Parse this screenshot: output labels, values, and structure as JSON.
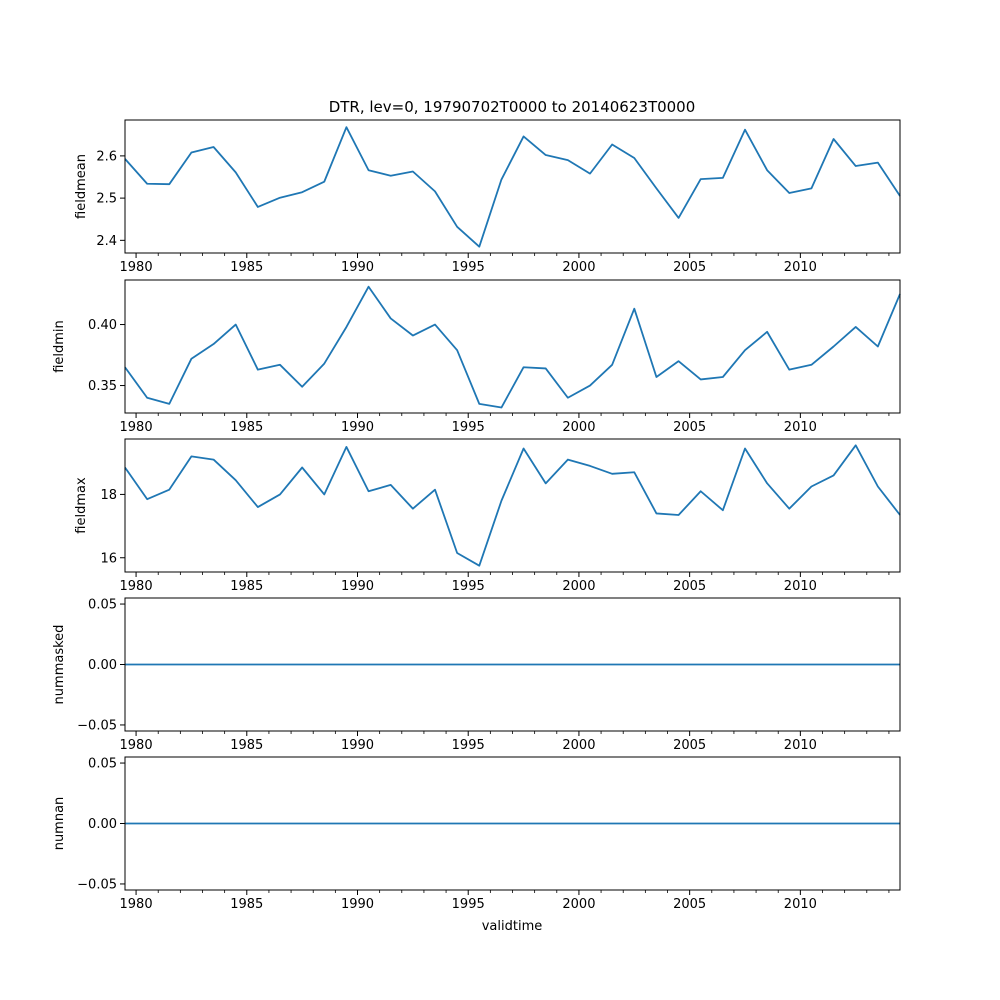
{
  "figure": {
    "title": "DTR, lev=0, 19790702T0000 to 20140623T0000",
    "xlabel": "validtime",
    "line_color": "#1f77b4"
  },
  "chart_data": [
    {
      "type": "line",
      "ylabel": "fieldmean",
      "xlim": [
        1979.5,
        2014.5
      ],
      "ylim": [
        2.37,
        2.685
      ],
      "x_ticks": [
        "1980",
        "1985",
        "1990",
        "1995",
        "2000",
        "2005",
        "2010"
      ],
      "y_ticks": [
        "2.4",
        "2.5",
        "2.6"
      ],
      "y_tick_values": [
        2.4,
        2.5,
        2.6
      ],
      "x": [
        1979.5,
        1980.5,
        1981.5,
        1982.5,
        1983.5,
        1984.5,
        1985.5,
        1986.5,
        1987.5,
        1988.5,
        1989.5,
        1990.5,
        1991.5,
        1992.5,
        1993.5,
        1994.5,
        1995.5,
        1996.5,
        1997.5,
        1998.5,
        1999.5,
        2000.5,
        2001.5,
        2002.5,
        2003.5,
        2004.5,
        2005.5,
        2006.5,
        2007.5,
        2008.5,
        2009.5,
        2010.5,
        2011.5,
        2012.5,
        2013.5,
        2014.5
      ],
      "values": [
        2.593,
        2.534,
        2.533,
        2.608,
        2.621,
        2.561,
        2.479,
        2.501,
        2.514,
        2.539,
        2.668,
        2.566,
        2.553,
        2.563,
        2.516,
        2.432,
        2.385,
        2.544,
        2.646,
        2.602,
        2.59,
        2.558,
        2.627,
        2.595,
        2.523,
        2.453,
        2.545,
        2.548,
        2.662,
        2.566,
        2.512,
        2.523,
        2.64,
        2.576,
        2.584,
        2.505
      ]
    },
    {
      "type": "line",
      "ylabel": "fieldmin",
      "xlim": [
        1979.5,
        2014.5
      ],
      "ylim": [
        0.3275,
        0.4365
      ],
      "x_ticks": [
        "1980",
        "1985",
        "1990",
        "1995",
        "2000",
        "2005",
        "2010"
      ],
      "y_ticks": [
        "0.35",
        "0.40"
      ],
      "y_tick_values": [
        0.35,
        0.4
      ],
      "x": [
        1979.5,
        1980.5,
        1981.5,
        1982.5,
        1983.5,
        1984.5,
        1985.5,
        1986.5,
        1987.5,
        1988.5,
        1989.5,
        1990.5,
        1991.5,
        1992.5,
        1993.5,
        1994.5,
        1995.5,
        1996.5,
        1997.5,
        1998.5,
        1999.5,
        2000.5,
        2001.5,
        2002.5,
        2003.5,
        2004.5,
        2005.5,
        2006.5,
        2007.5,
        2008.5,
        2009.5,
        2010.5,
        2011.5,
        2012.5,
        2013.5,
        2014.5
      ],
      "values": [
        0.365,
        0.34,
        0.335,
        0.372,
        0.384,
        0.4,
        0.363,
        0.367,
        0.349,
        0.368,
        0.398,
        0.431,
        0.405,
        0.391,
        0.4,
        0.379,
        0.335,
        0.332,
        0.365,
        0.364,
        0.34,
        0.35,
        0.367,
        0.413,
        0.357,
        0.37,
        0.355,
        0.357,
        0.379,
        0.394,
        0.363,
        0.367,
        0.382,
        0.398,
        0.382,
        0.425
      ]
    },
    {
      "type": "line",
      "ylabel": "fieldmax",
      "xlim": [
        1979.5,
        2014.5
      ],
      "ylim": [
        15.55,
        19.75
      ],
      "x_ticks": [
        "1980",
        "1985",
        "1990",
        "1995",
        "2000",
        "2005",
        "2010"
      ],
      "y_ticks": [
        "16",
        "18"
      ],
      "y_tick_values": [
        16,
        18
      ],
      "x": [
        1979.5,
        1980.5,
        1981.5,
        1982.5,
        1983.5,
        1984.5,
        1985.5,
        1986.5,
        1987.5,
        1988.5,
        1989.5,
        1990.5,
        1991.5,
        1992.5,
        1993.5,
        1994.5,
        1995.5,
        1996.5,
        1997.5,
        1998.5,
        1999.5,
        2000.5,
        2001.5,
        2002.5,
        2003.5,
        2004.5,
        2005.5,
        2006.5,
        2007.5,
        2008.5,
        2009.5,
        2010.5,
        2011.5,
        2012.5,
        2013.5,
        2014.5
      ],
      "values": [
        18.85,
        17.85,
        18.15,
        19.2,
        19.1,
        18.45,
        17.6,
        18.0,
        18.85,
        18.0,
        19.5,
        18.1,
        18.3,
        17.55,
        18.15,
        16.15,
        15.75,
        17.8,
        19.45,
        18.35,
        19.1,
        18.9,
        18.65,
        18.7,
        17.4,
        17.35,
        18.1,
        17.5,
        19.45,
        18.35,
        17.55,
        18.25,
        18.6,
        19.55,
        18.25,
        17.35
      ]
    },
    {
      "type": "line",
      "ylabel": "nummasked",
      "xlim": [
        1979.5,
        2014.5
      ],
      "ylim": [
        -0.055,
        0.055
      ],
      "x_ticks": [
        "1980",
        "1985",
        "1990",
        "1995",
        "2000",
        "2005",
        "2010"
      ],
      "y_ticks": [
        "−0.05",
        "0.00",
        "0.05"
      ],
      "y_tick_values": [
        -0.05,
        0.0,
        0.05
      ],
      "x": [
        1979.5,
        2014.5
      ],
      "values": [
        0,
        0
      ]
    },
    {
      "type": "line",
      "ylabel": "numnan",
      "xlim": [
        1979.5,
        2014.5
      ],
      "ylim": [
        -0.055,
        0.055
      ],
      "x_ticks": [
        "1980",
        "1985",
        "1990",
        "1995",
        "2000",
        "2005",
        "2010"
      ],
      "y_ticks": [
        "−0.05",
        "0.00",
        "0.05"
      ],
      "y_tick_values": [
        -0.05,
        0.0,
        0.05
      ],
      "x": [
        1979.5,
        2014.5
      ],
      "values": [
        0,
        0
      ]
    }
  ]
}
